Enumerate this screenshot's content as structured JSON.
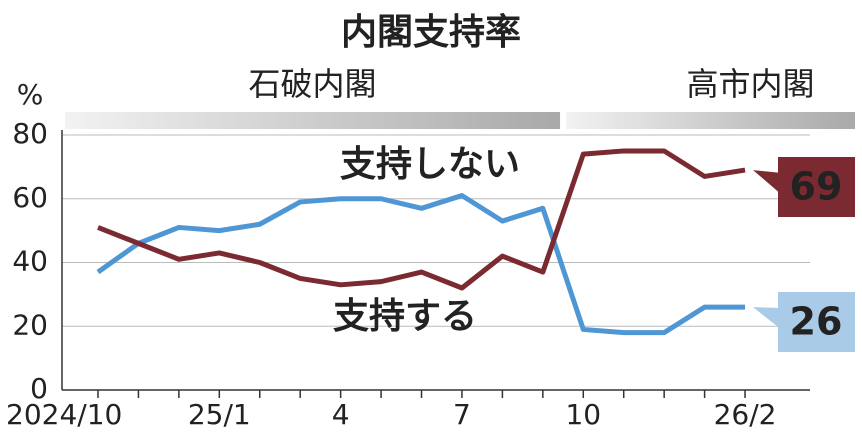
{
  "chart_data": {
    "type": "line",
    "title": "内閣支持率",
    "y_unit": "%",
    "categories": [
      "2024/10",
      null,
      null,
      "25/1",
      null,
      null,
      "4",
      null,
      null,
      "7",
      null,
      null,
      "10",
      null,
      null,
      null,
      "26/2"
    ],
    "periods": [
      {
        "label": "石破内閣",
        "start": 0,
        "end": 11
      },
      {
        "label": "高市内閣",
        "start": 12,
        "end": 16
      }
    ],
    "series": [
      {
        "name": "支持する",
        "color": "#4f97d4",
        "label_color": "#7a2a30",
        "box_color": "#a9cbe8",
        "box_text_color": "#111",
        "values": [
          37,
          46,
          51,
          50,
          52,
          59,
          60,
          60,
          57,
          61,
          53,
          57,
          19,
          18,
          18,
          26,
          26
        ]
      },
      {
        "name": "支持しない",
        "color": "#7a2a30",
        "label_color": "#222",
        "box_color": "#7a2a30",
        "box_text_color": "#fff",
        "values": [
          51,
          46,
          41,
          43,
          40,
          35,
          33,
          34,
          37,
          32,
          42,
          37,
          74,
          75,
          75,
          67,
          69
        ]
      }
    ],
    "ylim": [
      0,
      80
    ],
    "yticks": [
      0,
      20,
      40,
      60,
      80
    ]
  }
}
